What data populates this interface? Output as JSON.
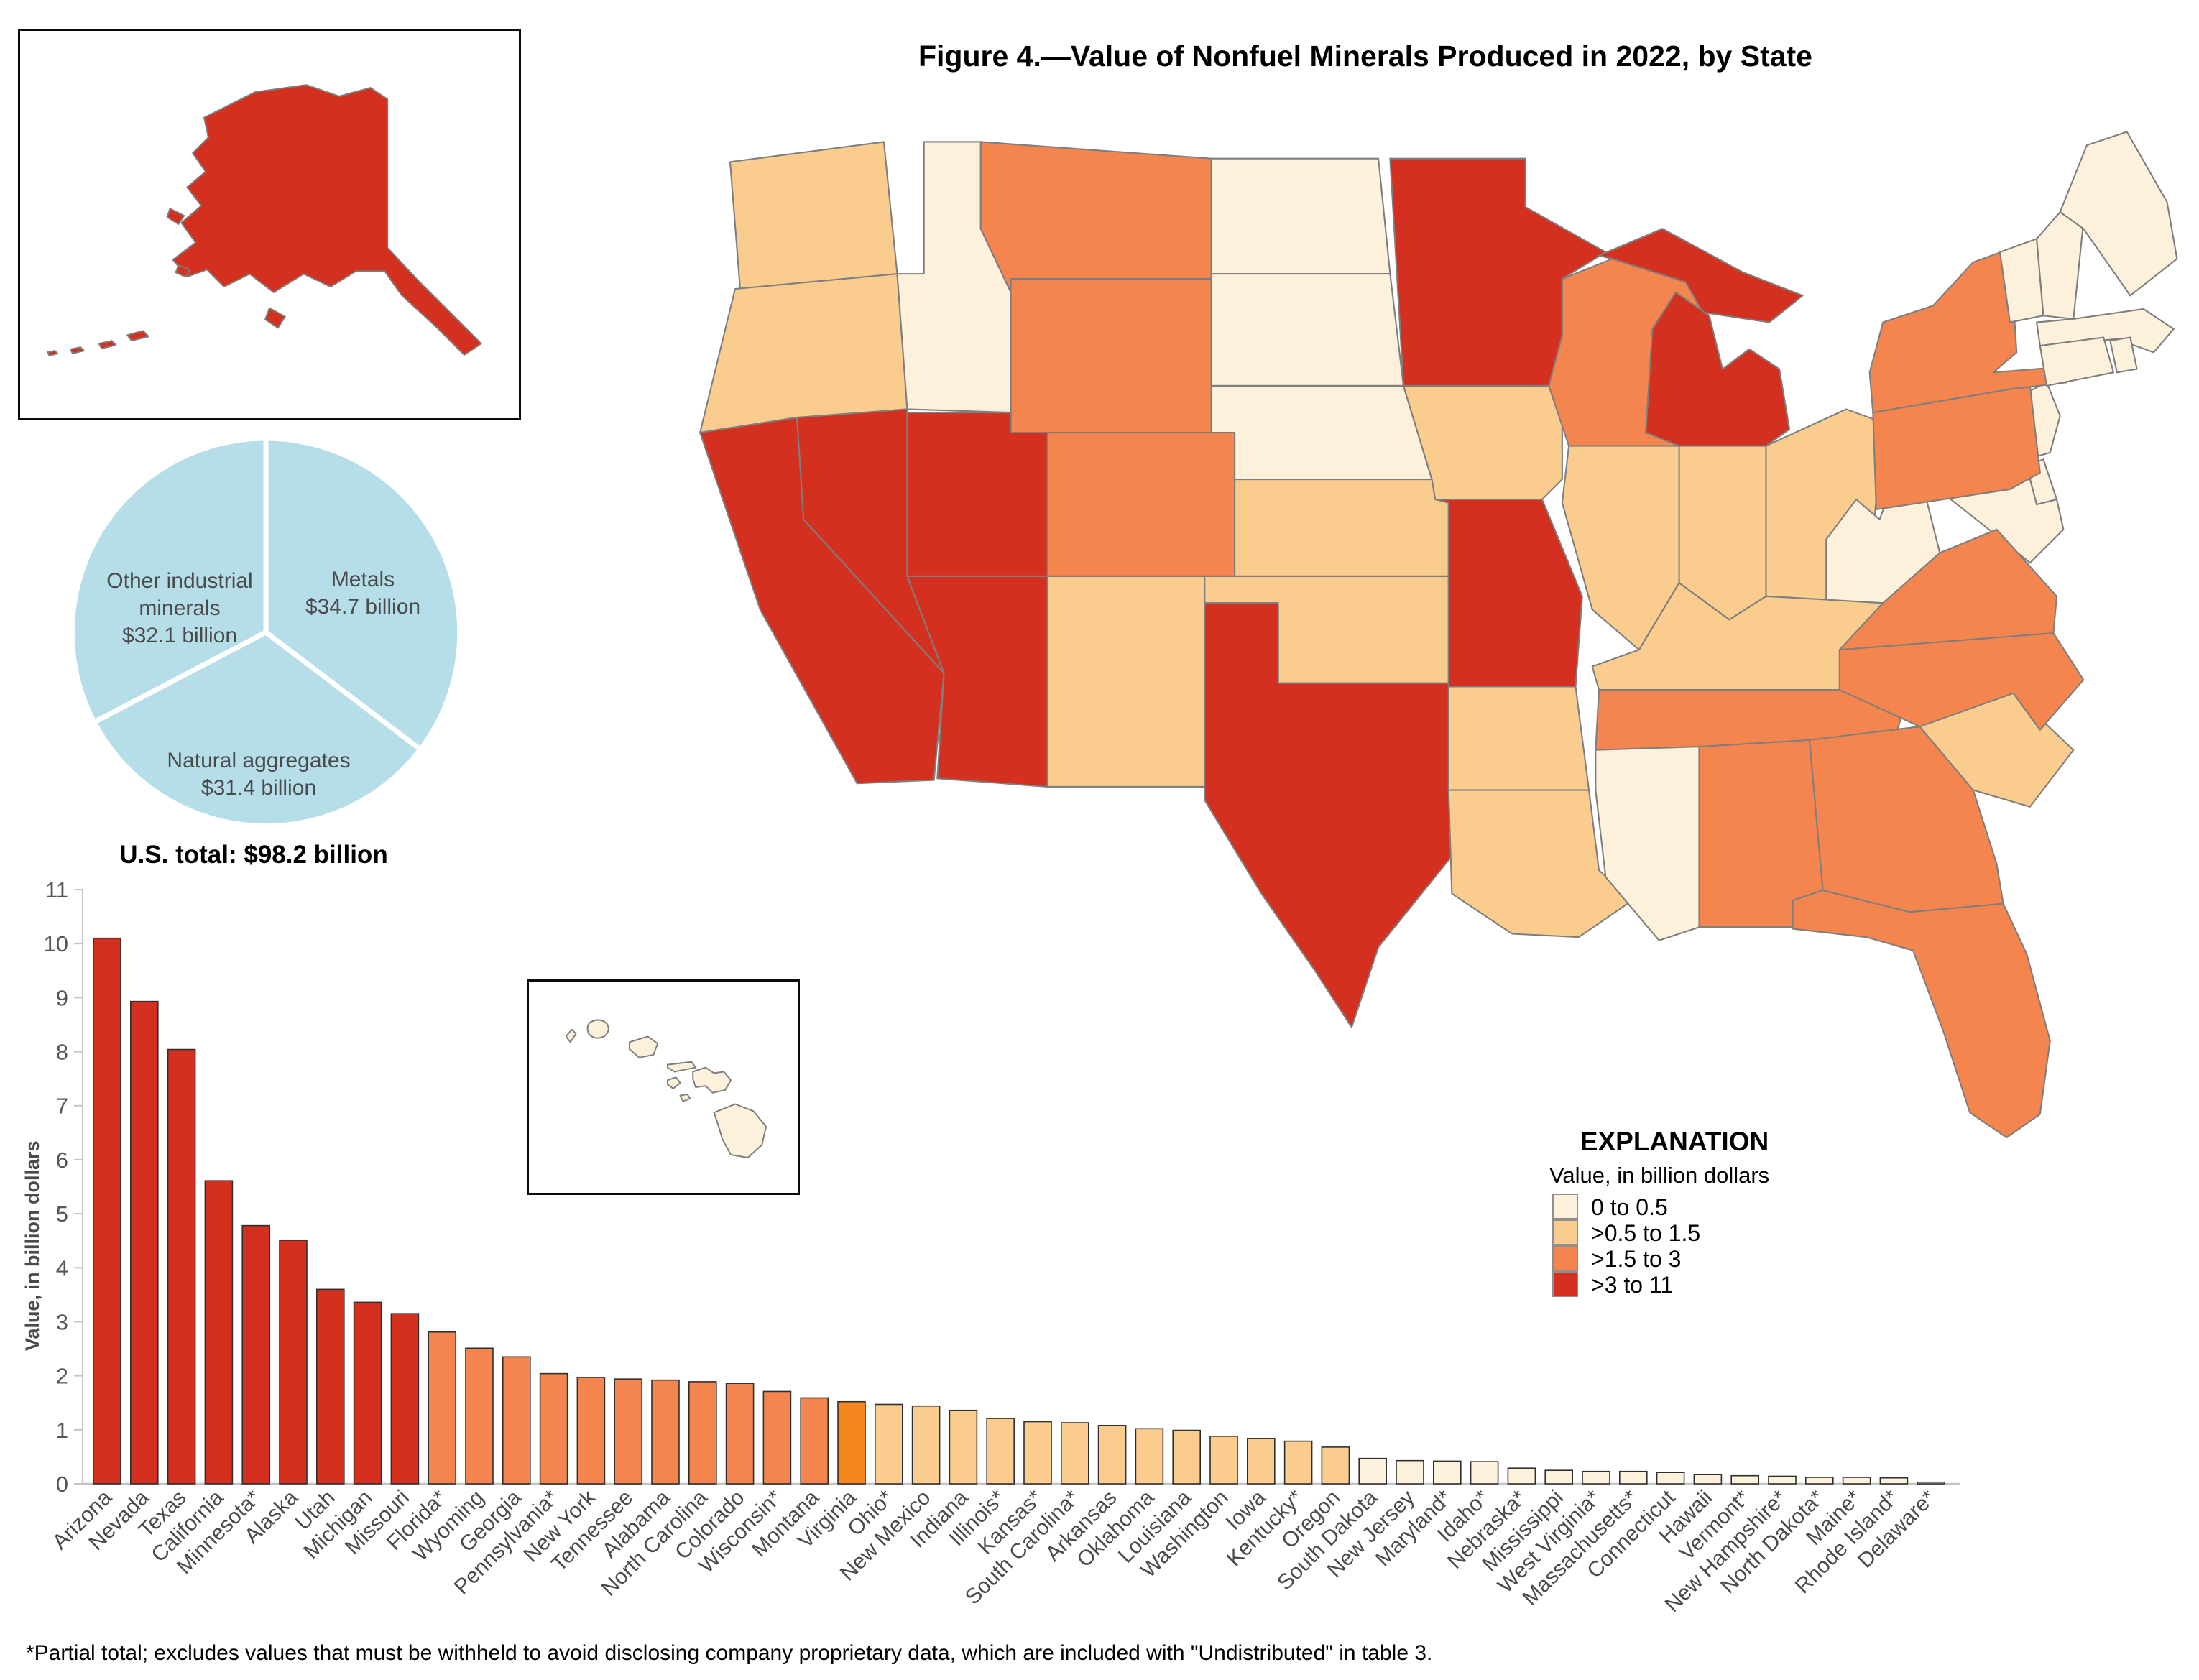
{
  "title": "Figure 4.—Value of Nonfuel Minerals Produced in 2022, by State",
  "us_total": "U.S. total: $98.2 billion",
  "footnote": "*Partial total; excludes values that must be withheld to avoid disclosing company proprietary data, which are included with \"Undistributed\" in table 3.",
  "colors": {
    "class_0_to_0_5": "#FDF1DC",
    "class_0_5_to_1_5": "#FACC8E",
    "class_1_5_to_3": "#F5854F",
    "class_3_to_11": "#D4301F",
    "virginia_bar": "#F6861F",
    "pie_fill": "#B5DEE9",
    "map_stroke": "#7E7E7E",
    "bar_stroke": "#2F2F2F",
    "axis": "#C3C3C3",
    "tick_text": "#565656",
    "label_text": "#4A4A4A"
  },
  "legend": {
    "heading": "EXPLANATION",
    "subheading": "Value, in billion dollars",
    "classes": [
      {
        "label": "0 to 0.5",
        "min": 0,
        "max": 0.5,
        "color": "#FDF1DC"
      },
      {
        "label": ">0.5 to 1.5",
        "min": 0.5,
        "max": 1.5,
        "color": "#FACC8E"
      },
      {
        "label": ">1.5 to 3",
        "min": 1.5,
        "max": 3,
        "color": "#F5854F"
      },
      {
        "label": ">3 to 11",
        "min": 3,
        "max": 11,
        "color": "#D4301F"
      }
    ]
  },
  "pie": {
    "slices": [
      {
        "name": "Metals",
        "value": 34.7,
        "label_lines": [
          "Metals",
          "$34.7 billion"
        ]
      },
      {
        "name": "Natural aggregates",
        "value": 31.4,
        "label_lines": [
          "Natural aggregates",
          "$31.4 billion"
        ]
      },
      {
        "name": "Other industrial minerals",
        "value": 32.1,
        "label_lines": [
          "Other industrial",
          "minerals",
          "$32.1 billion"
        ]
      }
    ]
  },
  "chart_data": [
    {
      "type": "pie",
      "title": "U.S. total: $98.2 billion",
      "unit": "billion dollars",
      "slices": [
        {
          "label": "Metals",
          "value": 34.7
        },
        {
          "label": "Natural aggregates",
          "value": 31.4
        },
        {
          "label": "Other industrial minerals",
          "value": 32.1
        }
      ]
    },
    {
      "type": "bar",
      "title": "Value of nonfuel minerals produced in 2022, by state",
      "xlabel": "",
      "ylabel": "Value, in billion dollars",
      "ylim": [
        0,
        11
      ],
      "yticks": [
        0,
        1,
        2,
        3,
        4,
        5,
        6,
        7,
        8,
        9,
        10,
        11
      ],
      "grid": false,
      "categories": [
        "Arizona",
        "Nevada",
        "Texas",
        "California",
        "Minnesota*",
        "Alaska",
        "Utah",
        "Michigan",
        "Missouri",
        "Florida*",
        "Wyoming",
        "Georgia",
        "Pennsylvania*",
        "New York",
        "Tennessee",
        "Alabama",
        "North Carolina",
        "Colorado",
        "Wisconsin*",
        "Montana",
        "Virginia",
        "Ohio*",
        "New Mexico",
        "Indiana",
        "Illinois*",
        "Kansas*",
        "South Carolina*",
        "Arkansas",
        "Oklahoma",
        "Louisiana",
        "Washington",
        "Iowa",
        "Kentucky*",
        "Oregon",
        "South Dakota",
        "New Jersey",
        "Maryland*",
        "Idaho*",
        "Nebraska*",
        "Mississippi",
        "West Virginia*",
        "Massachusetts*",
        "Connecticut",
        "Hawaii",
        "Vermont*",
        "New Hampshire*",
        "North Dakota*",
        "Maine*",
        "Rhode Island*",
        "Delaware*"
      ],
      "values": [
        10.1,
        8.93,
        8.04,
        5.61,
        4.78,
        4.51,
        3.6,
        3.36,
        3.15,
        2.81,
        2.51,
        2.35,
        2.04,
        1.97,
        1.94,
        1.92,
        1.89,
        1.86,
        1.71,
        1.59,
        1.52,
        1.47,
        1.44,
        1.36,
        1.21,
        1.15,
        1.13,
        1.08,
        1.02,
        0.99,
        0.88,
        0.84,
        0.79,
        0.68,
        0.47,
        0.43,
        0.42,
        0.41,
        0.29,
        0.25,
        0.23,
        0.23,
        0.21,
        0.17,
        0.15,
        0.14,
        0.12,
        0.12,
        0.11,
        0.03
      ]
    }
  ]
}
